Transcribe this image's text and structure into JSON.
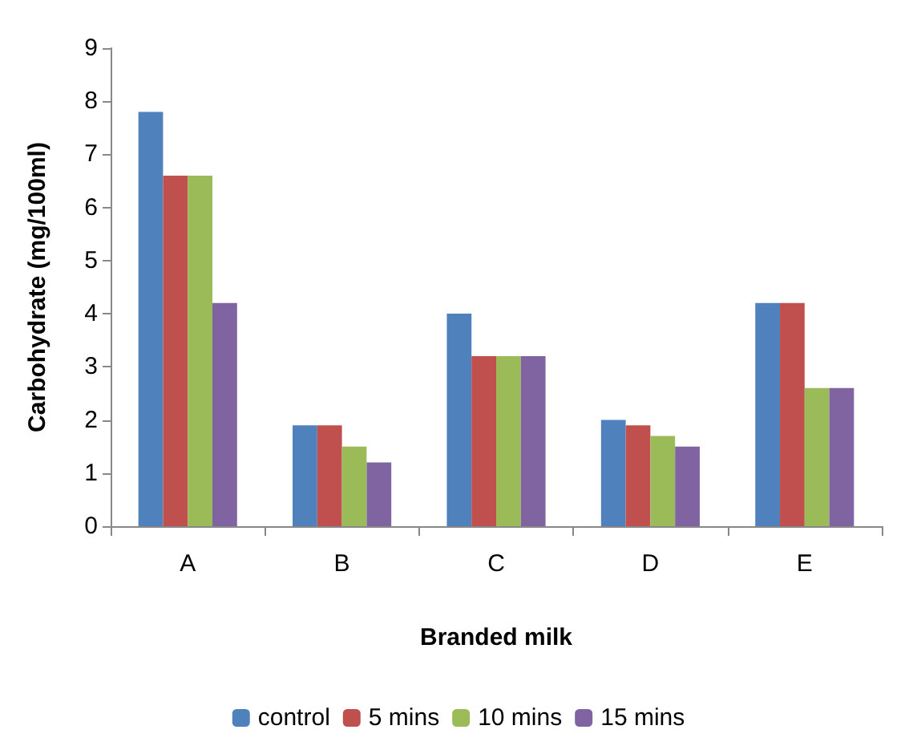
{
  "chart_data": {
    "type": "bar",
    "xlabel": "Branded milk",
    "ylabel": "Carbohydrate (mg/100ml)",
    "categories": [
      "A",
      "B",
      "C",
      "D",
      "E"
    ],
    "series": [
      {
        "name": "control",
        "color": "#4f81bd",
        "values": [
          7.8,
          1.9,
          4.0,
          2.0,
          4.2
        ]
      },
      {
        "name": "5 mins",
        "color": "#c0504d",
        "values": [
          6.6,
          1.9,
          3.2,
          1.9,
          4.2
        ]
      },
      {
        "name": "10 mins",
        "color": "#9bbb59",
        "values": [
          6.6,
          1.5,
          3.2,
          1.7,
          2.6
        ]
      },
      {
        "name": "15 mins",
        "color": "#8064a2",
        "values": [
          4.2,
          1.2,
          3.2,
          1.5,
          2.6
        ]
      }
    ],
    "ylim": [
      0,
      9
    ],
    "yticks": [
      0,
      1,
      2,
      3,
      4,
      5,
      6,
      7,
      8,
      9
    ],
    "grid": false,
    "legend": "bottom"
  }
}
